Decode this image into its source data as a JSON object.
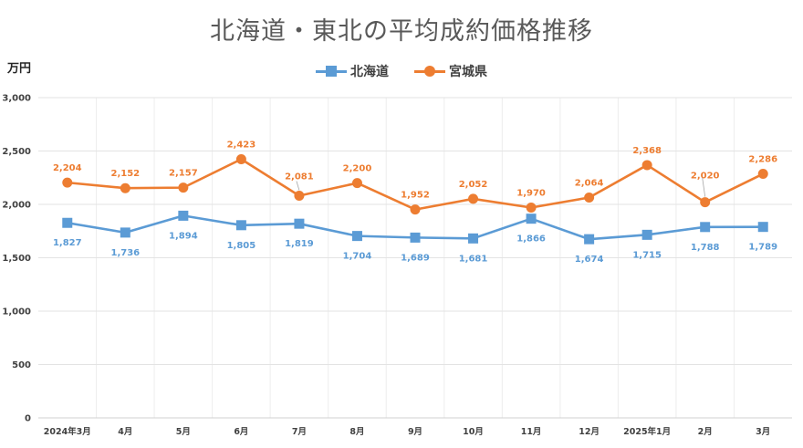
{
  "chart_data": {
    "type": "line",
    "title": "北海道・東北の平均成約価格推移",
    "unit_label": "万円",
    "categories": [
      "2024年3月",
      "4月",
      "5月",
      "6月",
      "7月",
      "8月",
      "9月",
      "10月",
      "11月",
      "12月",
      "2025年1月",
      "2月",
      "3月"
    ],
    "ylim": [
      0,
      3000
    ],
    "yticks": [
      0,
      500,
      1000,
      1500,
      2000,
      2500,
      3000
    ],
    "ytick_labels": [
      "0",
      "500",
      "1,000",
      "1,500",
      "2,000",
      "2,500",
      "3,000"
    ],
    "grid": true,
    "legend_position": "top",
    "series": [
      {
        "name": "北海道",
        "color": "#5b9bd5",
        "marker": "square",
        "values": [
          1827,
          1736,
          1894,
          1805,
          1819,
          1704,
          1689,
          1681,
          1866,
          1674,
          1715,
          1788,
          1789
        ],
        "labels": [
          "1,827",
          "1,736",
          "1,894",
          "1,805",
          "1,819",
          "1,704",
          "1,689",
          "1,681",
          "1,866",
          "1,674",
          "1,715",
          "1,788",
          "1,789"
        ]
      },
      {
        "name": "宮城県",
        "color": "#ed7d31",
        "marker": "circle",
        "values": [
          2204,
          2152,
          2157,
          2423,
          2081,
          2200,
          1952,
          2052,
          1970,
          2064,
          2368,
          2020,
          2286
        ],
        "labels": [
          "2,204",
          "2,152",
          "2,157",
          "2,423",
          "2,081",
          "2,200",
          "1,952",
          "2,052",
          "1,970",
          "2,064",
          "2,368",
          "2,020",
          "2,286"
        ]
      }
    ]
  }
}
